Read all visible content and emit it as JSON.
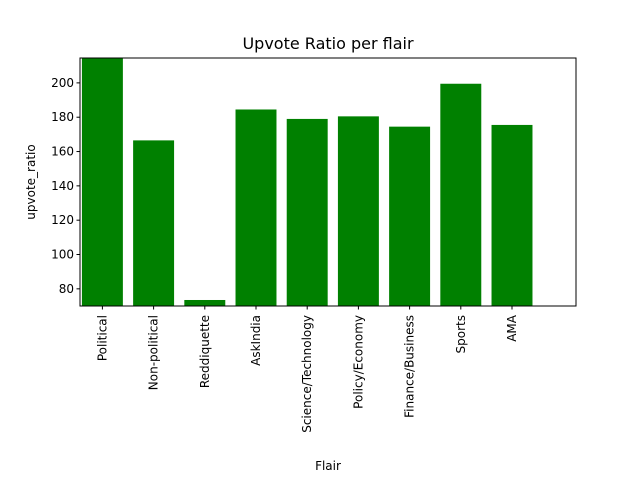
{
  "chart_data": {
    "type": "bar",
    "title": "Upvote Ratio per flair",
    "xlabel": "Flair",
    "ylabel": "upvote_ratio",
    "categories": [
      "Political",
      "Non-political",
      "Reddiquette",
      "AskIndia",
      "Science/Technology",
      "Policy/Economy",
      "Finance/Business",
      "Sports",
      "AMA"
    ],
    "values": [
      216,
      166.5,
      73.5,
      184.5,
      179,
      180.5,
      174.5,
      199.5,
      175.5
    ],
    "ylim": [
      70,
      214.5
    ],
    "yticks": [
      80,
      100,
      120,
      140,
      160,
      180,
      200
    ],
    "grid": false,
    "bar_color": "#008000"
  }
}
